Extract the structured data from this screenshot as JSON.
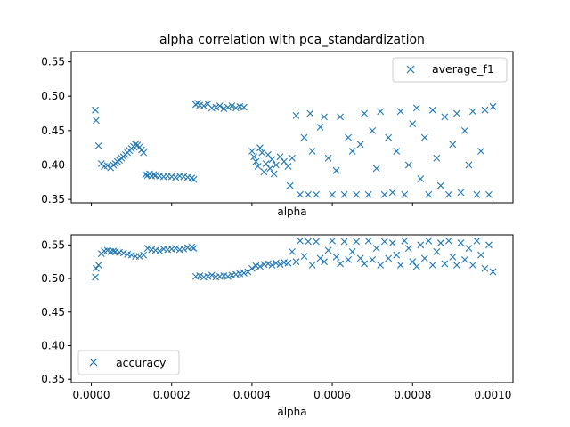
{
  "chart_data": [
    {
      "type": "scatter",
      "title": "alpha correlation with pca_standardization",
      "xlabel": "alpha",
      "ylabel": "",
      "xlim": [
        -5e-05,
        0.00105
      ],
      "ylim": [
        0.345,
        0.565
      ],
      "yticks": [
        "0.35",
        "0.40",
        "0.45",
        "0.50",
        "0.55"
      ],
      "xticks_visible": false,
      "legend_location": "upper right",
      "grid": false,
      "marker": "x",
      "color": "#1f77b4",
      "series": [
        {
          "name": "average_f1",
          "points": [
            [
              1e-05,
              0.48
            ],
            [
              1.2e-05,
              0.465
            ],
            [
              1.8e-05,
              0.428
            ],
            [
              2.5e-05,
              0.402
            ],
            [
              3.2e-05,
              0.398
            ],
            [
              4e-05,
              0.399
            ],
            [
              4.8e-05,
              0.396
            ],
            [
              5.5e-05,
              0.4
            ],
            [
              6e-05,
              0.402
            ],
            [
              6.5e-05,
              0.405
            ],
            [
              7e-05,
              0.407
            ],
            [
              7.5e-05,
              0.41
            ],
            [
              8e-05,
              0.412
            ],
            [
              8.5e-05,
              0.415
            ],
            [
              9e-05,
              0.418
            ],
            [
              9.5e-05,
              0.421
            ],
            [
              0.0001,
              0.424
            ],
            [
              0.000105,
              0.427
            ],
            [
              0.00011,
              0.43
            ],
            [
              0.000115,
              0.429
            ],
            [
              0.00012,
              0.426
            ],
            [
              0.000125,
              0.422
            ],
            [
              0.00013,
              0.418
            ],
            [
              0.000135,
              0.386
            ],
            [
              0.00014,
              0.385
            ],
            [
              0.000145,
              0.387
            ],
            [
              0.00015,
              0.384
            ],
            [
              0.000155,
              0.386
            ],
            [
              0.00016,
              0.385
            ],
            [
              0.00017,
              0.384
            ],
            [
              0.00018,
              0.383
            ],
            [
              0.00019,
              0.384
            ],
            [
              0.0002,
              0.383
            ],
            [
              0.00021,
              0.382
            ],
            [
              0.00022,
              0.384
            ],
            [
              0.00023,
              0.383
            ],
            [
              0.00024,
              0.382
            ],
            [
              0.00025,
              0.381
            ],
            [
              0.000255,
              0.379
            ],
            [
              0.00026,
              0.488
            ],
            [
              0.000265,
              0.49
            ],
            [
              0.00027,
              0.487
            ],
            [
              0.00028,
              0.486
            ],
            [
              0.00029,
              0.489
            ],
            [
              0.0003,
              0.483
            ],
            [
              0.00031,
              0.484
            ],
            [
              0.00032,
              0.486
            ],
            [
              0.00033,
              0.482
            ],
            [
              0.00034,
              0.484
            ],
            [
              0.00035,
              0.486
            ],
            [
              0.00036,
              0.483
            ],
            [
              0.00037,
              0.485
            ],
            [
              0.00038,
              0.484
            ],
            [
              0.0004,
              0.42
            ],
            [
              0.000405,
              0.412
            ],
            [
              0.00041,
              0.405
            ],
            [
              0.000415,
              0.398
            ],
            [
              0.00042,
              0.425
            ],
            [
              0.000425,
              0.418
            ],
            [
              0.00043,
              0.39
            ],
            [
              0.000435,
              0.402
            ],
            [
              0.00044,
              0.415
            ],
            [
              0.000445,
              0.395
            ],
            [
              0.00045,
              0.408
            ],
            [
              0.000455,
              0.387
            ],
            [
              0.00046,
              0.4
            ],
            [
              0.00047,
              0.412
            ],
            [
              0.00048,
              0.405
            ],
            [
              0.00049,
              0.398
            ],
            [
              0.000495,
              0.37
            ],
            [
              0.0005,
              0.41
            ],
            [
              0.00051,
              0.472
            ],
            [
              0.00052,
              0.357
            ],
            [
              0.00053,
              0.44
            ],
            [
              0.00054,
              0.357
            ],
            [
              0.000545,
              0.475
            ],
            [
              0.00055,
              0.42
            ],
            [
              0.00056,
              0.357
            ],
            [
              0.00057,
              0.455
            ],
            [
              0.00058,
              0.47
            ],
            [
              0.00059,
              0.41
            ],
            [
              0.0006,
              0.357
            ],
            [
              0.00061,
              0.392
            ],
            [
              0.00062,
              0.47
            ],
            [
              0.00063,
              0.357
            ],
            [
              0.00064,
              0.44
            ],
            [
              0.00065,
              0.42
            ],
            [
              0.00066,
              0.357
            ],
            [
              0.00067,
              0.43
            ],
            [
              0.00068,
              0.475
            ],
            [
              0.00069,
              0.357
            ],
            [
              0.0007,
              0.45
            ],
            [
              0.00071,
              0.395
            ],
            [
              0.00072,
              0.478
            ],
            [
              0.00073,
              0.357
            ],
            [
              0.00074,
              0.44
            ],
            [
              0.00075,
              0.36
            ],
            [
              0.00076,
              0.42
            ],
            [
              0.00077,
              0.478
            ],
            [
              0.00078,
              0.357
            ],
            [
              0.00079,
              0.4
            ],
            [
              0.0008,
              0.46
            ],
            [
              0.00081,
              0.483
            ],
            [
              0.00082,
              0.38
            ],
            [
              0.00083,
              0.44
            ],
            [
              0.00084,
              0.357
            ],
            [
              0.00085,
              0.48
            ],
            [
              0.00086,
              0.41
            ],
            [
              0.00087,
              0.37
            ],
            [
              0.00088,
              0.47
            ],
            [
              0.00089,
              0.357
            ],
            [
              0.0009,
              0.43
            ],
            [
              0.00091,
              0.475
            ],
            [
              0.00092,
              0.36
            ],
            [
              0.00093,
              0.45
            ],
            [
              0.00094,
              0.4
            ],
            [
              0.00095,
              0.478
            ],
            [
              0.00096,
              0.357
            ],
            [
              0.00097,
              0.42
            ],
            [
              0.00098,
              0.48
            ],
            [
              0.00099,
              0.357
            ],
            [
              0.001,
              0.485
            ]
          ]
        }
      ]
    },
    {
      "type": "scatter",
      "title": "",
      "xlabel": "alpha",
      "ylabel": "",
      "xlim": [
        -5e-05,
        0.00105
      ],
      "ylim": [
        0.345,
        0.565
      ],
      "yticks": [
        "0.35",
        "0.40",
        "0.45",
        "0.50",
        "0.55"
      ],
      "xticks": [
        "0.0000",
        "0.0002",
        "0.0004",
        "0.0006",
        "0.0008",
        "0.0010"
      ],
      "legend_location": "lower left",
      "grid": false,
      "marker": "x",
      "color": "#1f77b4",
      "series": [
        {
          "name": "accuracy",
          "points": [
            [
              1e-05,
              0.502
            ],
            [
              1.2e-05,
              0.515
            ],
            [
              1.8e-05,
              0.52
            ],
            [
              2.5e-05,
              0.537
            ],
            [
              3.2e-05,
              0.541
            ],
            [
              4e-05,
              0.542
            ],
            [
              4.8e-05,
              0.54
            ],
            [
              5.5e-05,
              0.541
            ],
            [
              6e-05,
              0.54
            ],
            [
              7e-05,
              0.539
            ],
            [
              8e-05,
              0.538
            ],
            [
              9e-05,
              0.536
            ],
            [
              0.0001,
              0.535
            ],
            [
              0.00011,
              0.533
            ],
            [
              0.00012,
              0.533
            ],
            [
              0.00013,
              0.535
            ],
            [
              0.00014,
              0.545
            ],
            [
              0.00015,
              0.543
            ],
            [
              0.00016,
              0.542
            ],
            [
              0.00017,
              0.541
            ],
            [
              0.00018,
              0.544
            ],
            [
              0.00019,
              0.543
            ],
            [
              0.0002,
              0.544
            ],
            [
              0.00021,
              0.545
            ],
            [
              0.00022,
              0.543
            ],
            [
              0.00023,
              0.544
            ],
            [
              0.00024,
              0.546
            ],
            [
              0.00025,
              0.547
            ],
            [
              0.000255,
              0.545
            ],
            [
              0.00026,
              0.503
            ],
            [
              0.00027,
              0.504
            ],
            [
              0.00028,
              0.502
            ],
            [
              0.00029,
              0.503
            ],
            [
              0.0003,
              0.505
            ],
            [
              0.00031,
              0.502
            ],
            [
              0.00032,
              0.503
            ],
            [
              0.00033,
              0.504
            ],
            [
              0.00034,
              0.503
            ],
            [
              0.00035,
              0.505
            ],
            [
              0.00036,
              0.506
            ],
            [
              0.00037,
              0.507
            ],
            [
              0.00038,
              0.508
            ],
            [
              0.00039,
              0.51
            ],
            [
              0.0004,
              0.515
            ],
            [
              0.00041,
              0.519
            ],
            [
              0.00042,
              0.518
            ],
            [
              0.00043,
              0.521
            ],
            [
              0.00044,
              0.522
            ],
            [
              0.00045,
              0.52
            ],
            [
              0.00046,
              0.523
            ],
            [
              0.00047,
              0.521
            ],
            [
              0.00048,
              0.524
            ],
            [
              0.00049,
              0.523
            ],
            [
              0.0005,
              0.54
            ],
            [
              0.00051,
              0.525
            ],
            [
              0.00052,
              0.556
            ],
            [
              0.00053,
              0.533
            ],
            [
              0.00054,
              0.555
            ],
            [
              0.00055,
              0.52
            ],
            [
              0.00056,
              0.555
            ],
            [
              0.00057,
              0.53
            ],
            [
              0.00058,
              0.525
            ],
            [
              0.00059,
              0.542
            ],
            [
              0.0006,
              0.556
            ],
            [
              0.00061,
              0.532
            ],
            [
              0.00062,
              0.522
            ],
            [
              0.00063,
              0.555
            ],
            [
              0.00064,
              0.528
            ],
            [
              0.00065,
              0.54
            ],
            [
              0.00066,
              0.555
            ],
            [
              0.00067,
              0.53
            ],
            [
              0.00068,
              0.522
            ],
            [
              0.00069,
              0.556
            ],
            [
              0.0007,
              0.528
            ],
            [
              0.00071,
              0.545
            ],
            [
              0.00072,
              0.52
            ],
            [
              0.00073,
              0.555
            ],
            [
              0.00074,
              0.53
            ],
            [
              0.00075,
              0.553
            ],
            [
              0.00076,
              0.535
            ],
            [
              0.00077,
              0.52
            ],
            [
              0.00078,
              0.556
            ],
            [
              0.00079,
              0.545
            ],
            [
              0.0008,
              0.525
            ],
            [
              0.00081,
              0.518
            ],
            [
              0.00082,
              0.55
            ],
            [
              0.00083,
              0.53
            ],
            [
              0.00084,
              0.556
            ],
            [
              0.00085,
              0.52
            ],
            [
              0.00086,
              0.54
            ],
            [
              0.00087,
              0.553
            ],
            [
              0.00088,
              0.522
            ],
            [
              0.00089,
              0.556
            ],
            [
              0.0009,
              0.532
            ],
            [
              0.00091,
              0.52
            ],
            [
              0.00092,
              0.553
            ],
            [
              0.00093,
              0.528
            ],
            [
              0.00094,
              0.545
            ],
            [
              0.00095,
              0.52
            ],
            [
              0.00096,
              0.556
            ],
            [
              0.00097,
              0.535
            ],
            [
              0.00098,
              0.515
            ],
            [
              0.00099,
              0.55
            ],
            [
              0.001,
              0.51
            ]
          ]
        }
      ]
    }
  ]
}
